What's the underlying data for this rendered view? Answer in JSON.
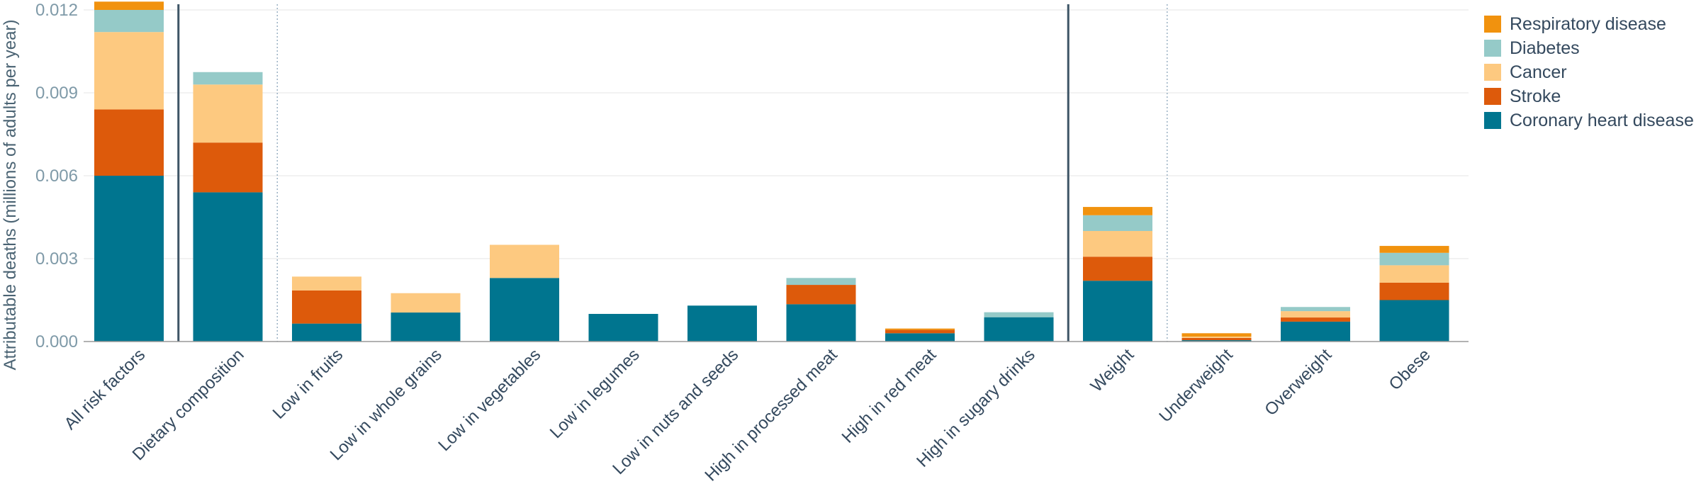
{
  "chart_data": {
    "type": "bar",
    "stacked": true,
    "ylabel": "Attributable deaths (millions of adults per year)",
    "ylim": [
      0,
      0.012
    ],
    "yticks": [
      "0.000",
      "0.003",
      "0.006",
      "0.009",
      "0.012"
    ],
    "grid": true,
    "legend_position": "top-right",
    "categories": [
      "All risk factors",
      "Dietary composition",
      "Low in fruits",
      "Low in whole grains",
      "Low in vegetables",
      "Low in legumes",
      "Low in nuts and seeds",
      "High in processed meat",
      "High in red meat",
      "High in sugary drinks",
      "Weight",
      "Underweight",
      "Overweight",
      "Obese"
    ],
    "series": [
      {
        "name": "Coronary heart disease",
        "color": "#00758f",
        "values": [
          0.006,
          0.0054,
          0.00065,
          0.00105,
          0.0023,
          0.001,
          0.0013,
          0.00135,
          0.0003,
          0.00088,
          0.0022,
          5e-05,
          0.00072,
          0.0015
        ]
      },
      {
        "name": "Stroke",
        "color": "#dd5a0b",
        "values": [
          0.0024,
          0.0018,
          0.0012,
          0.0,
          0.0,
          0.0,
          0.0,
          0.0007,
          0.00012,
          0.0,
          0.00087,
          8e-05,
          0.00015,
          0.00063
        ]
      },
      {
        "name": "Cancer",
        "color": "#fdc980",
        "values": [
          0.0028,
          0.0021,
          0.0005,
          0.0007,
          0.0012,
          0.0,
          0.0,
          0.0,
          0.0,
          0.0,
          0.00093,
          5e-05,
          0.00023,
          0.00063
        ]
      },
      {
        "name": "Diabetes",
        "color": "#95cac8",
        "values": [
          0.0008,
          0.00045,
          0.0,
          0.0,
          0.0,
          0.0,
          0.0,
          0.00025,
          0.0,
          0.00018,
          0.00057,
          0.0,
          0.00015,
          0.00045
        ]
      },
      {
        "name": "Respiratory disease",
        "color": "#f1920e",
        "values": [
          0.0003,
          0.0,
          0.0,
          0.0,
          0.0,
          0.0,
          0.0,
          0.0,
          5e-05,
          0.0,
          0.0003,
          0.00012,
          0.0,
          0.00025
        ]
      }
    ],
    "group_separators": [
      {
        "after_category": "All risk factors",
        "style": "solid"
      },
      {
        "after_category": "Dietary composition",
        "style": "dotted"
      },
      {
        "after_category": "High in sugary drinks",
        "style": "solid"
      },
      {
        "after_category": "Weight",
        "style": "dotted"
      }
    ],
    "legend_order": [
      "Respiratory disease",
      "Diabetes",
      "Cancer",
      "Stroke",
      "Coronary heart disease"
    ]
  }
}
